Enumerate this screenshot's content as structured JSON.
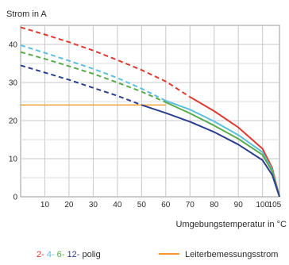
{
  "chart_data": {
    "type": "line",
    "ylabel": "Strom in A",
    "xlabel": "Umgebungstemperatur in °C",
    "xlim": [
      0,
      107
    ],
    "ylim": [
      0,
      45
    ],
    "x_ticks": [
      10,
      20,
      30,
      40,
      50,
      60,
      70,
      80,
      90,
      100,
      105
    ],
    "y_ticks": [
      0,
      10,
      20,
      30,
      40
    ],
    "grid": true,
    "series": [
      {
        "name": "2-polig",
        "color": "#e03a2f",
        "dashed_points": [
          [
            0,
            44.5
          ],
          [
            10,
            42.6
          ],
          [
            20,
            40.6
          ],
          [
            30,
            38.4
          ],
          [
            40,
            35.9
          ],
          [
            50,
            33.3
          ],
          [
            60,
            30.3
          ],
          [
            70,
            26.2
          ]
        ],
        "solid_points": [
          [
            70,
            26.2
          ],
          [
            80,
            22.5
          ],
          [
            90,
            18.2
          ],
          [
            100,
            12.6
          ],
          [
            104,
            7.5
          ],
          [
            107,
            0
          ]
        ]
      },
      {
        "name": "4-polig",
        "color": "#5bc0e0",
        "dashed_points": [
          [
            0,
            39.8
          ],
          [
            10,
            37.8
          ],
          [
            20,
            35.7
          ],
          [
            30,
            33.6
          ],
          [
            40,
            31.2
          ],
          [
            50,
            28.4
          ],
          [
            60,
            25.2
          ]
        ],
        "solid_points": [
          [
            60,
            25.2
          ],
          [
            70,
            22.9
          ],
          [
            80,
            19.8
          ],
          [
            90,
            16.2
          ],
          [
            100,
            11.7
          ],
          [
            104,
            7.0
          ],
          [
            107,
            0
          ]
        ]
      },
      {
        "name": "6-polig",
        "color": "#5aab4a",
        "dashed_points": [
          [
            0,
            38.0
          ],
          [
            10,
            36.2
          ],
          [
            20,
            34.3
          ],
          [
            30,
            32.3
          ],
          [
            40,
            30.0
          ],
          [
            50,
            27.6
          ],
          [
            60,
            24.8
          ]
        ],
        "solid_points": [
          [
            60,
            24.8
          ],
          [
            70,
            21.9
          ],
          [
            80,
            18.7
          ],
          [
            90,
            15.2
          ],
          [
            100,
            11.0
          ],
          [
            104,
            6.6
          ],
          [
            107,
            0
          ]
        ]
      },
      {
        "name": "12-polig",
        "color": "#2c3f8f",
        "dashed_points": [
          [
            0,
            34.5
          ],
          [
            10,
            32.6
          ],
          [
            20,
            30.7
          ],
          [
            30,
            28.6
          ],
          [
            40,
            26.5
          ],
          [
            50,
            24.1
          ]
        ],
        "solid_points": [
          [
            50,
            24.1
          ],
          [
            60,
            22.0
          ],
          [
            70,
            19.7
          ],
          [
            80,
            17.0
          ],
          [
            90,
            13.7
          ],
          [
            100,
            9.6
          ],
          [
            104,
            5.7
          ],
          [
            107,
            0
          ]
        ]
      }
    ],
    "reference_line": {
      "name": "Leiterbemessungsstrom",
      "color": "#f39a2b",
      "points": [
        [
          0,
          24.1
        ],
        [
          60,
          24.1
        ]
      ]
    },
    "legend": {
      "position": "bottom",
      "poles": [
        {
          "text": "2-",
          "color": "#e03a2f"
        },
        {
          "text": "4-",
          "color": "#5bc0e0"
        },
        {
          "text": "6-",
          "color": "#5aab4a"
        },
        {
          "text": "12-",
          "color": "#2c3f8f"
        },
        {
          "text": "polig",
          "color": "#2b2b2b"
        }
      ],
      "reference_label": "Leiterbemessungsstrom"
    }
  }
}
